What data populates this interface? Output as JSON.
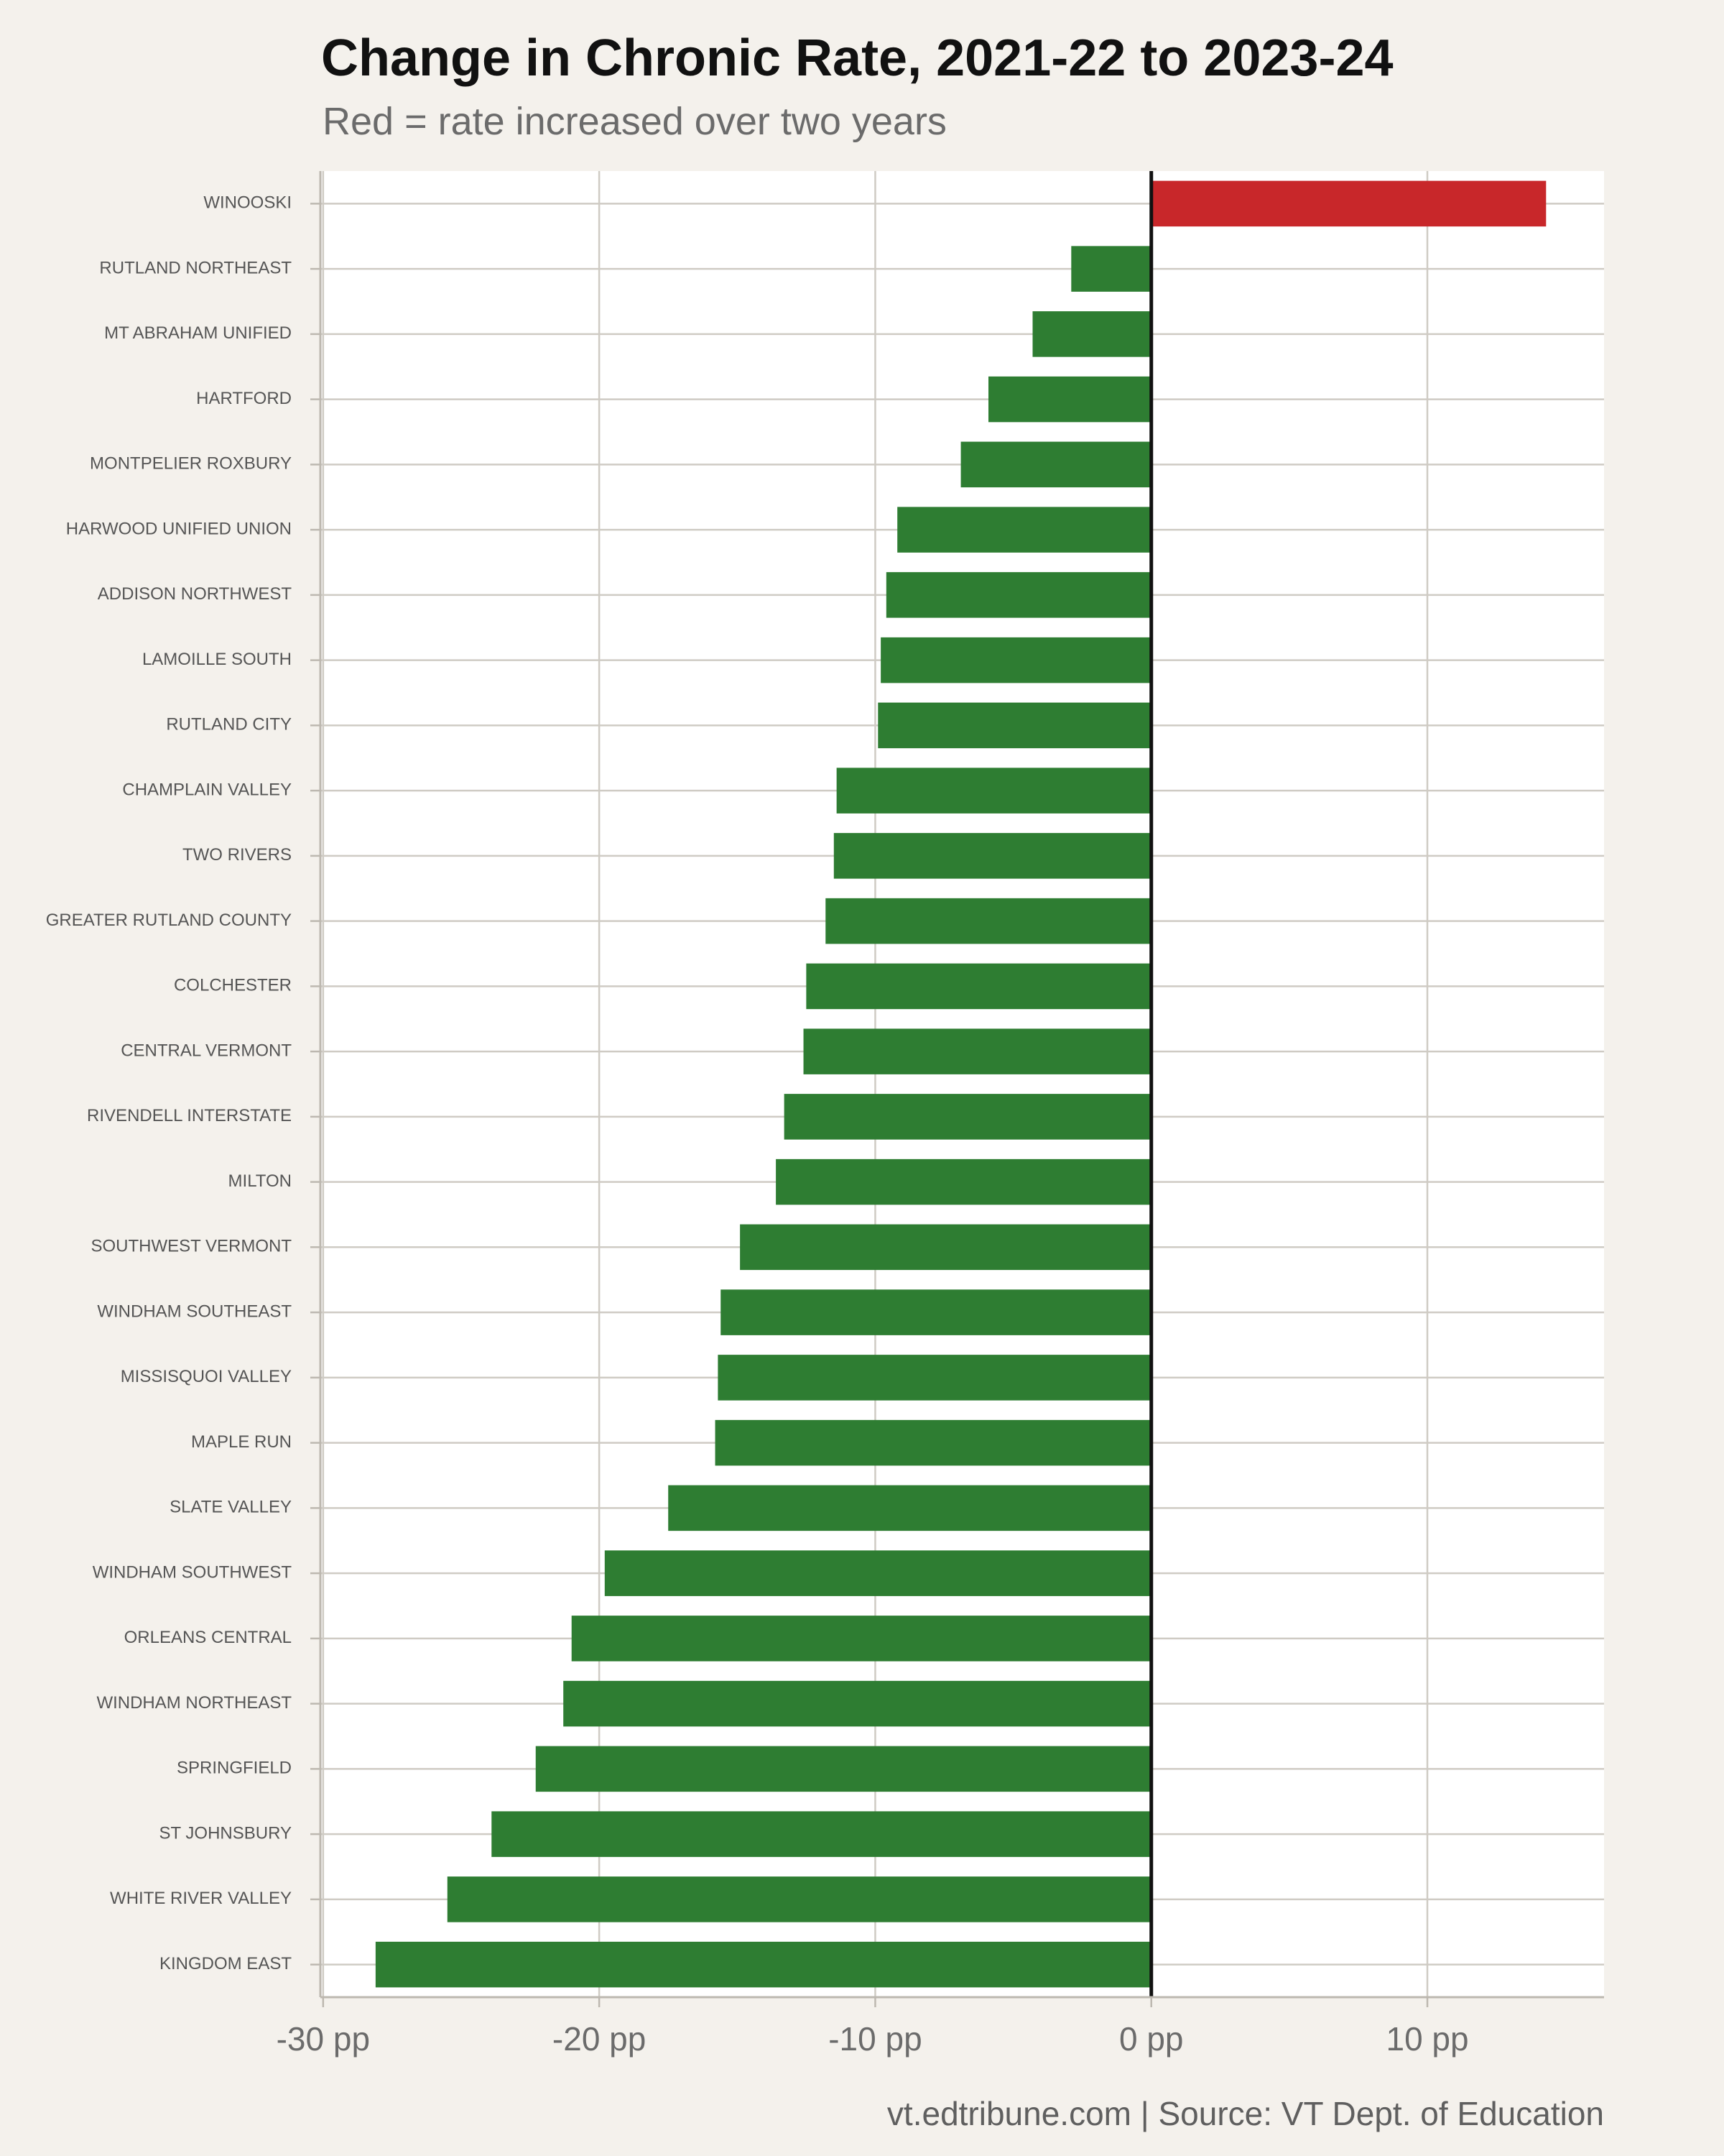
{
  "chart_data": {
    "type": "bar",
    "orientation": "horizontal",
    "title": "Change in Chronic Rate, 2021-22 to 2023-24",
    "subtitle": "Red = rate increased over two years",
    "caption": "vt.edtribune.com | Source: VT Dept. of Education",
    "xlabel": "",
    "ylabel": "",
    "xlim": [
      -30.1,
      16.4
    ],
    "x_ticks": [
      -30,
      -20,
      -10,
      0,
      10
    ],
    "x_tick_labels": [
      "-30 pp",
      "-20 pp",
      "-10 pp",
      "0 pp",
      "10 pp"
    ],
    "grid": true,
    "legend": "none",
    "colors": {
      "increase": "#c8272a",
      "decrease": "#2e7d32"
    },
    "categories": [
      "WINOOSKI",
      "RUTLAND NORTHEAST",
      "MT ABRAHAM UNIFIED",
      "HARTFORD",
      "MONTPELIER ROXBURY",
      "HARWOOD UNIFIED UNION",
      "ADDISON NORTHWEST",
      "LAMOILLE SOUTH",
      "RUTLAND CITY",
      "CHAMPLAIN VALLEY",
      "TWO RIVERS",
      "GREATER RUTLAND COUNTY",
      "COLCHESTER",
      "CENTRAL VERMONT",
      "RIVENDELL INTERSTATE",
      "MILTON",
      "SOUTHWEST VERMONT",
      "WINDHAM SOUTHEAST",
      "MISSISQUOI VALLEY",
      "MAPLE RUN",
      "SLATE VALLEY",
      "WINDHAM SOUTHWEST",
      "ORLEANS CENTRAL",
      "WINDHAM NORTHEAST",
      "SPRINGFIELD",
      "ST JOHNSBURY",
      "WHITE RIVER VALLEY",
      "KINGDOM EAST"
    ],
    "values": [
      14.3,
      -2.9,
      -4.3,
      -5.9,
      -6.9,
      -9.2,
      -9.6,
      -9.8,
      -9.9,
      -11.4,
      -11.5,
      -11.8,
      -12.5,
      -12.6,
      -13.3,
      -13.6,
      -14.9,
      -15.6,
      -15.7,
      -15.8,
      -17.5,
      -19.8,
      -21.0,
      -21.3,
      -22.3,
      -23.9,
      -25.5,
      -28.1
    ]
  }
}
